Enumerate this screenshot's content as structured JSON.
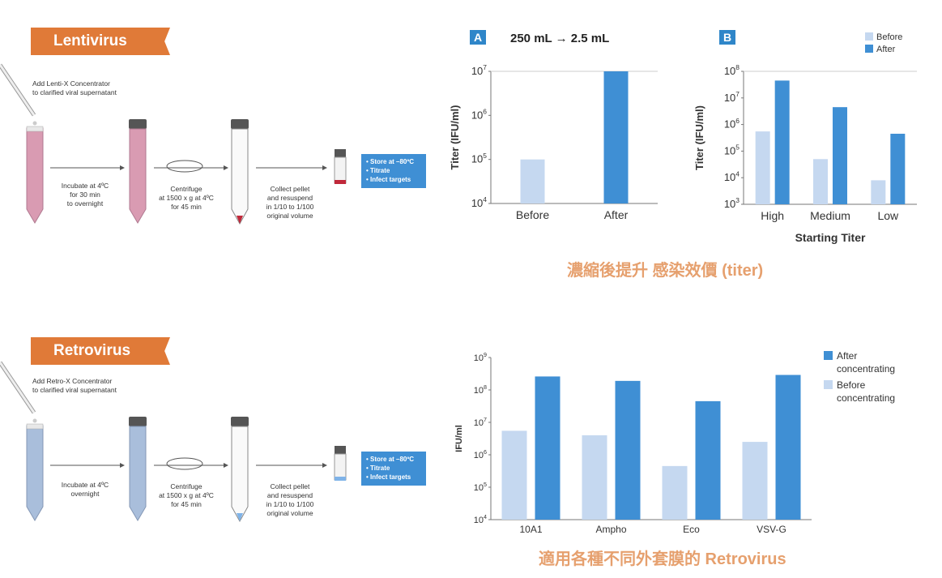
{
  "lenti": {
    "banner": "Lentivirus",
    "add_label": [
      "Add Lenti-X Concentrator",
      "to clarified viral supernatant"
    ],
    "incubate": [
      "Incubate at 4ºC",
      "for 30 min",
      "to overnight"
    ],
    "centrifuge": [
      "Centrifuge",
      "at 1500 x g at 4ºC",
      "for 45 min"
    ],
    "collect": [
      "Collect pellet",
      "and resuspend",
      "in 1/10 to 1/100",
      "original volume"
    ],
    "box": [
      "• Store at –80ºC",
      "• Titrate",
      "• Infect targets"
    ]
  },
  "retro": {
    "banner": "Retrovirus",
    "add_label": [
      "Add Retro-X Concentrator",
      "to clarified viral supernatant"
    ],
    "incubate": [
      "Incubate at 4ºC",
      "overnight"
    ],
    "centrifuge": [
      "Centrifuge",
      "at 1500 x g at 4ºC",
      "for 45 min"
    ],
    "collect": [
      "Collect pellet",
      "and resuspend",
      "in 1/10 to 1/100",
      "original volume"
    ],
    "box": [
      "• Store at –80ºC",
      "• Titrate",
      "• Infect targets"
    ]
  },
  "captions": {
    "lenti": "濃縮後提升 感染效價 (titer)",
    "retro": "適用各種不同外套膜的 Retrovirus"
  },
  "colors": {
    "before": "#c5d8f0",
    "after": "#3f8fd4",
    "banner": "#e07a38",
    "caption": "#e6a06e"
  },
  "chart_data": [
    {
      "id": "A",
      "type": "bar",
      "panel_label": "A",
      "title": "250 mL → 2.5 mL",
      "ylabel": "Titer (IFU/ml)",
      "xlabel": "",
      "yscale": "log",
      "ylim": [
        10000,
        10000000
      ],
      "yticks": [
        "10^4",
        "10^5",
        "10^6",
        "10^7"
      ],
      "categories": [
        "Before",
        "After"
      ],
      "values": [
        100000,
        10000000
      ],
      "colors": [
        "#c5d8f0",
        "#3f8fd4"
      ]
    },
    {
      "id": "B",
      "type": "bar",
      "panel_label": "B",
      "ylabel": "Titer (IFU/ml)",
      "xlabel": "Starting Titer",
      "yscale": "log",
      "ylim": [
        1000,
        100000000
      ],
      "yticks": [
        "10^3",
        "10^4",
        "10^5",
        "10^6",
        "10^7",
        "10^8"
      ],
      "categories": [
        "High",
        "Medium",
        "Low"
      ],
      "legend_position": "top-right",
      "series": [
        {
          "name": "Before",
          "color": "#c5d8f0",
          "values": [
            550000,
            50000,
            8000
          ]
        },
        {
          "name": "After",
          "color": "#3f8fd4",
          "values": [
            45000000,
            4500000,
            450000
          ]
        }
      ]
    },
    {
      "id": "C",
      "type": "bar",
      "ylabel": "IFU/ml",
      "xlabel": "",
      "yscale": "log",
      "ylim": [
        10000,
        1000000000
      ],
      "yticks": [
        "10^4",
        "10^5",
        "10^6",
        "10^7",
        "10^8",
        "10^9"
      ],
      "categories": [
        "10A1",
        "Ampho",
        "Eco",
        "VSV-G"
      ],
      "legend_position": "top-right",
      "series": [
        {
          "name": "Before concentrating",
          "color": "#c5d8f0",
          "values": [
            5500000,
            4000000,
            450000,
            2500000
          ]
        },
        {
          "name": "After concentrating",
          "color": "#3f8fd4",
          "values": [
            260000000,
            190000000,
            45000000,
            290000000
          ]
        }
      ]
    }
  ]
}
